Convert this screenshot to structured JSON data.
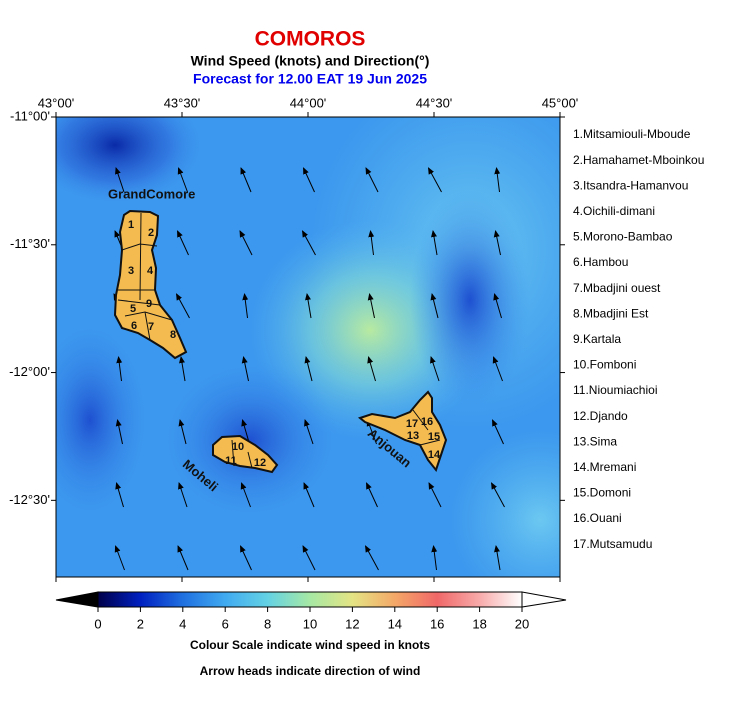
{
  "header": {
    "title": "COMOROS",
    "subtitle": "Wind Speed (knots) and Direction(°)",
    "forecast": "Forecast for  12.00 EAT 19 Jun 2025"
  },
  "map": {
    "xlim": [
      43,
      45
    ],
    "ylim": [
      -12.8,
      -11
    ],
    "xticks": [
      {
        "value": 43,
        "label": "43°00'"
      },
      {
        "value": 43.5,
        "label": "43°30'"
      },
      {
        "value": 44,
        "label": "44°00'"
      },
      {
        "value": 44.5,
        "label": "44°30'"
      },
      {
        "value": 45,
        "label": "45°00'"
      }
    ],
    "yticks": [
      {
        "value": -11,
        "label": "-11°00'"
      },
      {
        "value": -11.5,
        "label": "-11°30'"
      },
      {
        "value": -12,
        "label": "-12°00'"
      },
      {
        "value": -12.5,
        "label": "-12°30'"
      }
    ],
    "islands": [
      "GrandComore",
      "Moheli",
      "Anjouan"
    ],
    "region_numbers": [
      "1",
      "2",
      "3",
      "4",
      "5",
      "6",
      "7",
      "8",
      "9",
      "10",
      "11",
      "12",
      "13",
      "14",
      "15",
      "16",
      "17"
    ]
  },
  "legend": [
    "1.Mitsamiouli-Mboude",
    "2.Hamahamet-Mboinkou",
    "3.Itsandra-Hamanvou",
    "4.Oichili-dimani",
    "5.Morono-Bambao",
    "6.Hambou",
    "7.Mbadjini ouest",
    "8.Mbadjini Est",
    "9.Kartala",
    "10.Fomboni",
    "11.Nioumiachioi",
    "12.Djando",
    "13.Sima",
    "14.Mremani",
    "15.Domoni",
    "16.Ouani",
    "17.Mutsamudu"
  ],
  "colorbar": {
    "range": [
      0,
      20
    ],
    "ticks": [
      0,
      2,
      4,
      6,
      8,
      10,
      12,
      14,
      16,
      18,
      20
    ],
    "caption": "Colour Scale indicate wind speed in knots",
    "note": "Arrow heads indicate direction of wind"
  }
}
